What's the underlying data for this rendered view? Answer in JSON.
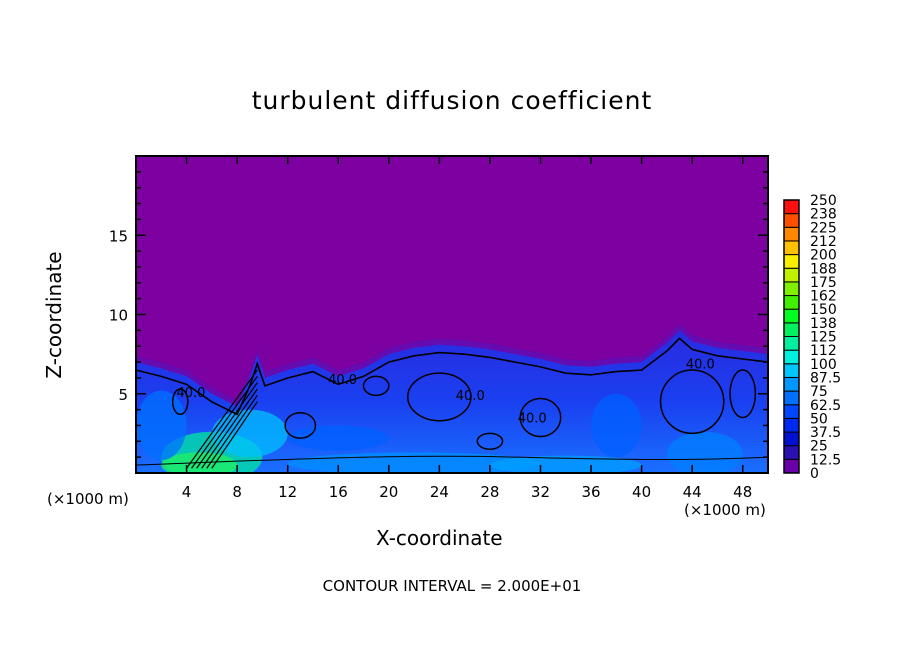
{
  "chart_data": {
    "type": "heatmap",
    "title": "turbulent diffusion coefficient",
    "xlabel": "X-coordinate",
    "ylabel": "Z-coordinate",
    "x_unit_label_left": "(×1000 m)",
    "x_unit_label_right": "(×1000 m)",
    "xlim": [
      0,
      50
    ],
    "ylim": [
      0,
      20
    ],
    "xticks": [
      4,
      8,
      12,
      16,
      20,
      24,
      28,
      32,
      36,
      40,
      44,
      48
    ],
    "yticks": [
      5,
      10,
      15
    ],
    "colorbar": {
      "levels": [
        "0",
        "12.5",
        "25",
        "37.5",
        "50",
        "62.5",
        "75",
        "87.5",
        "100",
        "112",
        "125",
        "138",
        "150",
        "162",
        "175",
        "188",
        "200",
        "212",
        "225",
        "238",
        "250"
      ],
      "colors": [
        "#6a00a8",
        "#2a10b0",
        "#0010d0",
        "#0028f0",
        "#0048ff",
        "#0070ff",
        "#0098ff",
        "#00c8ff",
        "#00f0e0",
        "#00f0a0",
        "#00f060",
        "#00ff20",
        "#40f000",
        "#80f000",
        "#c0f000",
        "#f8f000",
        "#ffc000",
        "#ff8800",
        "#ff5000",
        "#ff1010",
        "#f05050"
      ]
    },
    "contour_labels": [
      "40.0",
      "40.0",
      "40.0",
      "40.0",
      "40.0"
    ],
    "contour_interval_text": "CONTOUR INTERVAL = 2.000E+01",
    "background_color": "#7d00a0"
  }
}
